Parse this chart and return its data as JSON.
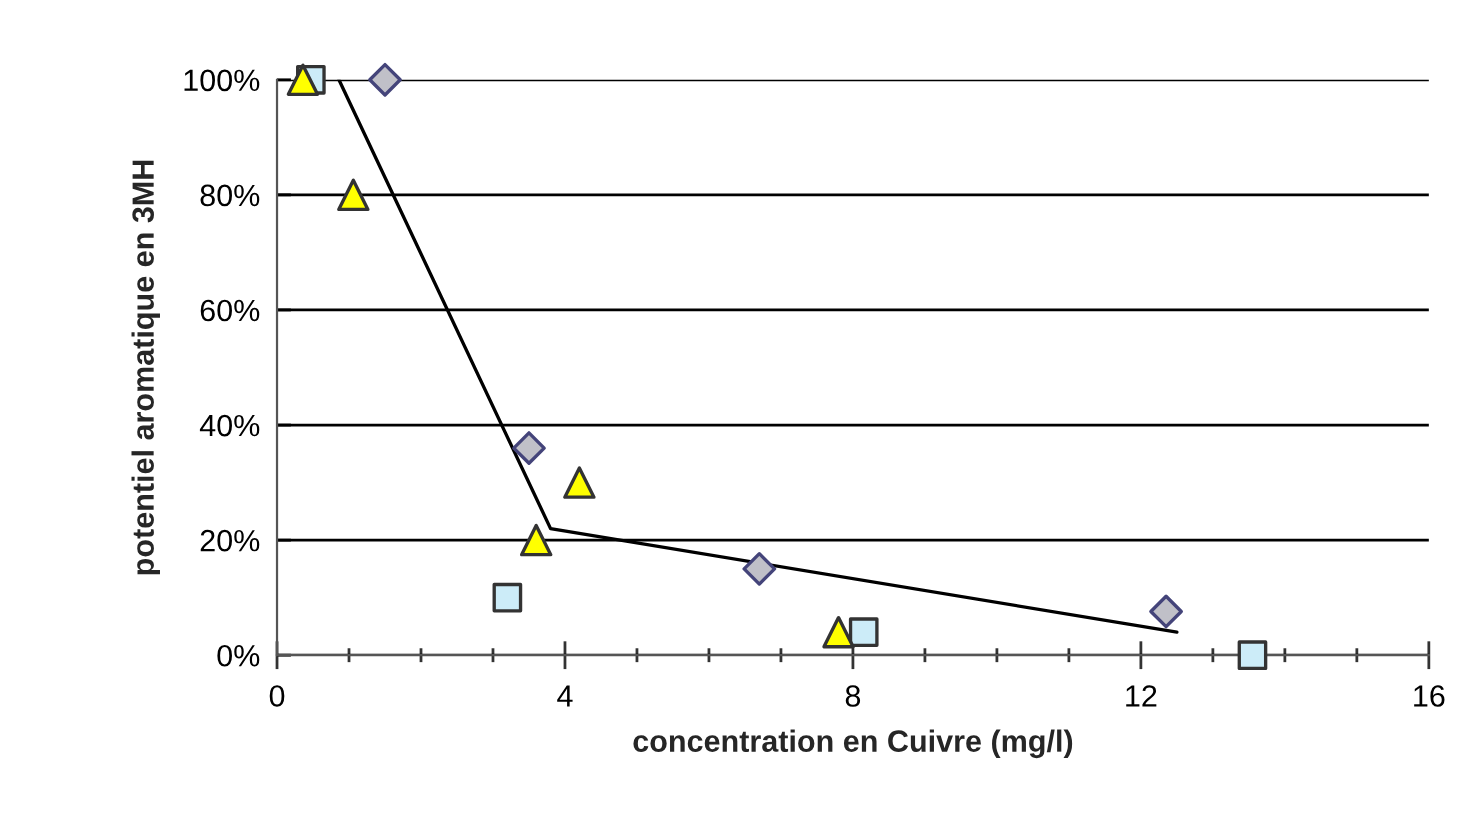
{
  "chart_data": {
    "type": "scatter",
    "xlabel": "concentration en Cuivre (mg/l)",
    "ylabel": "potentiel aromatique en 3MH",
    "series": [
      {
        "marker": "triangle",
        "color": "#ffff00",
        "x": [
          0.36,
          1.06,
          3.6,
          4.2,
          7.8
        ],
        "values": [
          100,
          80,
          20,
          30,
          4
        ]
      },
      {
        "marker": "square",
        "color": "#ccecf8",
        "x": [
          0.47,
          3.2,
          8.15,
          13.55
        ],
        "values": [
          100,
          10,
          4,
          0
        ]
      },
      {
        "marker": "diamond",
        "color": "#c0c0c8",
        "x": [
          1.5,
          3.5,
          6.7,
          12.35
        ],
        "values": [
          100,
          36,
          15,
          7.6
        ]
      },
      {
        "type": "line",
        "marker": "none",
        "color": "#000000",
        "x": [
          0.86,
          3.8,
          12.5
        ],
        "values": [
          100,
          22,
          4
        ]
      }
    ],
    "xlim": [
      0,
      16
    ],
    "ylim": [
      0,
      100
    ],
    "xticks": [
      0,
      {
        "value": 1,
        "label": null
      },
      {
        "value": 2,
        "label": null
      },
      {
        "value": 3,
        "label": null
      },
      4,
      {
        "value": 5,
        "label": null
      },
      {
        "value": 6,
        "label": null
      },
      {
        "value": 7,
        "label": null
      },
      8,
      {
        "value": 9,
        "label": null
      },
      {
        "value": 10,
        "label": null
      },
      {
        "value": 11,
        "label": null
      },
      12,
      {
        "value": 13,
        "label": null
      },
      {
        "value": 14,
        "label": null
      },
      {
        "value": 15,
        "label": null
      },
      16
    ],
    "yticks": [
      {
        "value": 0,
        "label": "0%"
      },
      {
        "value": 20,
        "label": "20%"
      },
      {
        "value": 40,
        "label": "40%"
      },
      {
        "value": 60,
        "label": "60%"
      },
      {
        "value": 80,
        "label": "80%"
      },
      {
        "value": 100,
        "label": "100%"
      }
    ],
    "grid": "y",
    "legend": false
  }
}
